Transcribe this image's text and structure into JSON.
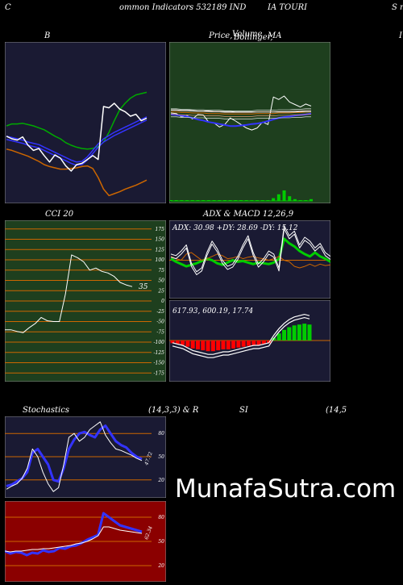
{
  "header": {
    "part1": "C",
    "part2": "ommon  Indicators 532189 IND",
    "part3": "IA TOURI",
    "part4": "S m"
  },
  "titles": {
    "bollinger": "B",
    "price": "Price,",
    "price_overlap": "Volume",
    "price_overlap2": "Bollinger,",
    "price_ma": "MA",
    "cci": "CCI 20",
    "adx": "ADX  & MACD 12,26,9",
    "stoch_left": "Stochastics",
    "stoch_mid": "(14,3,3) & R",
    "stoch_rsi": "SI",
    "stoch_right": "(14,5",
    "right_edge": "I"
  },
  "watermark": "MunafaSutra.com",
  "colors": {
    "bg_dark_blue": "#1a1a33",
    "bg_green": "#1e3f1e",
    "bg_red": "#8b0000",
    "orange": "#cc6600",
    "green": "#00cc00",
    "blue": "#3333ff",
    "white": "#ffffff"
  },
  "chart_data": [
    {
      "panel": "bollinger",
      "type": "line",
      "series": [
        {
          "color": "#00aa00",
          "values": [
            130,
            127,
            127,
            126,
            128,
            130,
            133,
            136,
            141,
            146,
            150,
            156,
            160,
            163,
            165,
            166,
            165,
            162,
            155,
            140,
            122,
            105,
            95,
            87,
            82,
            80,
            78
          ]
        },
        {
          "color": "#3333ff",
          "values": [
            146,
            148,
            150,
            152,
            155,
            157,
            159,
            163,
            167,
            171,
            175,
            179,
            183,
            186,
            185,
            178,
            168,
            158,
            150,
            145,
            140,
            136,
            132,
            128,
            124,
            120,
            116
          ]
        },
        {
          "color": "#cc6600",
          "values": [
            166,
            168,
            171,
            174,
            177,
            181,
            185,
            190,
            193,
            195,
            197,
            197,
            196,
            195,
            193,
            192,
            196,
            210,
            228,
            238,
            235,
            232,
            228,
            225,
            222,
            218,
            214
          ]
        },
        {
          "color": "#ffffff",
          "values": [
            146,
            150,
            152,
            147,
            160,
            168,
            165,
            176,
            186,
            175,
            180,
            192,
            200,
            190,
            188,
            182,
            176,
            182,
            100,
            102,
            95,
            104,
            108,
            115,
            112,
            122,
            118
          ]
        }
      ]
    },
    {
      "panel": "price",
      "type": "line",
      "series": [
        {
          "color": "#ffffff",
          "values": [
            142,
            143,
            150,
            147,
            154,
            145,
            146,
            160,
            162,
            170,
            165,
            152,
            158,
            165,
            172,
            176,
            172,
            160,
            165,
            110,
            115,
            108,
            120,
            125,
            130,
            124,
            128
          ]
        },
        {
          "color": "#3333ff",
          "values": [
            145,
            146,
            147,
            149,
            152,
            155,
            157,
            160,
            162,
            164,
            166,
            168,
            168,
            167,
            166,
            164,
            163,
            161,
            158,
            155,
            152,
            150,
            149,
            147,
            146,
            145,
            143
          ]
        },
        {
          "color": "#cc6600",
          "values": [
            140,
            140,
            141,
            141,
            142,
            142,
            142,
            143,
            143,
            143,
            144,
            144,
            144,
            144,
            144,
            144,
            143,
            143,
            143,
            143,
            142,
            142,
            142,
            141,
            141,
            140,
            140
          ]
        },
        {
          "color": "#ffffff",
          "values": [
            136,
            136,
            137,
            137,
            137,
            138,
            138,
            138,
            139,
            139,
            139,
            139,
            140,
            140,
            140,
            140,
            140,
            140,
            140,
            140,
            140,
            140,
            140,
            140,
            139,
            139,
            139
          ]
        }
      ],
      "volume": [
        0,
        0,
        0,
        0,
        0,
        0,
        0,
        0,
        0,
        0,
        0,
        0,
        0,
        0,
        0,
        0,
        0,
        0,
        0,
        2,
        6,
        10,
        4,
        1,
        0,
        0,
        1
      ]
    },
    {
      "panel": "cci",
      "type": "line",
      "yticks": [
        175,
        150,
        125,
        100,
        75,
        50,
        25,
        0,
        -25,
        -50,
        -75,
        -100,
        -125,
        -150,
        -175
      ],
      "ylim": [
        -185,
        185
      ],
      "label": "35",
      "values": [
        -70,
        -70,
        -74,
        -77,
        -65,
        -55,
        -40,
        -48,
        -50,
        -50,
        17,
        112,
        105,
        95,
        75,
        80,
        72,
        68,
        60,
        45,
        39,
        35
      ]
    },
    {
      "panel": "adx",
      "type": "line",
      "label": "ADX: 30.98  +DY: 28.69 -DY: 15.12",
      "series": [
        {
          "color": "#00cc00",
          "values": [
            52,
            48,
            45,
            42,
            44,
            46,
            49,
            52,
            50,
            46,
            44,
            47,
            50,
            48,
            49,
            47,
            45,
            47,
            46,
            45,
            47,
            52,
            78,
            72,
            68,
            62,
            58,
            55,
            60,
            55,
            52,
            48
          ]
        },
        {
          "color": "#cc6600",
          "values": [
            55,
            52,
            50,
            58,
            60,
            55,
            50,
            52,
            55,
            58,
            56,
            52,
            53,
            55,
            52,
            54,
            55,
            53,
            52,
            50,
            52,
            55,
            50,
            48,
            42,
            40,
            42,
            45,
            42,
            45,
            43,
            44
          ]
        },
        {
          "color": "#ffffff",
          "values": [
            58,
            56,
            62,
            70,
            46,
            35,
            40,
            60,
            75,
            65,
            50,
            42,
            45,
            55,
            70,
            82,
            60,
            45,
            52,
            62,
            58,
            40,
            95,
            82,
            88,
            70,
            80,
            75,
            66,
            72,
            60,
            55
          ]
        }
      ]
    },
    {
      "panel": "macd",
      "type": "bar",
      "label": "617.93,  600.19,  17.74",
      "values": [
        -3,
        -4,
        -5,
        -7,
        -9,
        -10,
        -11,
        -12,
        -12,
        -11,
        -10,
        -10,
        -9,
        -8,
        -7,
        -6,
        -5,
        -5,
        -4,
        -3,
        3,
        8,
        12,
        15,
        17,
        18,
        19,
        18
      ]
    },
    {
      "panel": "stochastics",
      "type": "line",
      "yticks": [
        80,
        50,
        20
      ],
      "label": "47.72",
      "series": [
        {
          "color": "#3333ff",
          "values": [
            12,
            14,
            18,
            22,
            30,
            55,
            60,
            50,
            40,
            20,
            18,
            35,
            60,
            72,
            80,
            82,
            78,
            75,
            85,
            90,
            80,
            70,
            65,
            62,
            55,
            50,
            47
          ]
        },
        {
          "color": "#ffffff",
          "values": [
            8,
            12,
            15,
            22,
            35,
            60,
            50,
            30,
            15,
            5,
            10,
            40,
            75,
            80,
            70,
            75,
            85,
            90,
            95,
            78,
            68,
            60,
            58,
            55,
            52,
            48,
            45
          ]
        }
      ]
    },
    {
      "panel": "rsi",
      "type": "line",
      "yticks": [
        80,
        50,
        20
      ],
      "label": "62.34",
      "series": [
        {
          "color": "#3333ff",
          "values": [
            38,
            35,
            37,
            36,
            33,
            36,
            35,
            39,
            37,
            38,
            42,
            41,
            44,
            45,
            48,
            52,
            55,
            58,
            85,
            80,
            75,
            70,
            68,
            66,
            64,
            62
          ]
        },
        {
          "color": "#ffffff",
          "values": [
            38,
            37,
            38,
            38,
            39,
            40,
            40,
            41,
            41,
            42,
            43,
            44,
            45,
            47,
            48,
            50,
            53,
            57,
            68,
            68,
            66,
            64,
            63,
            62,
            61,
            60
          ]
        }
      ]
    }
  ]
}
